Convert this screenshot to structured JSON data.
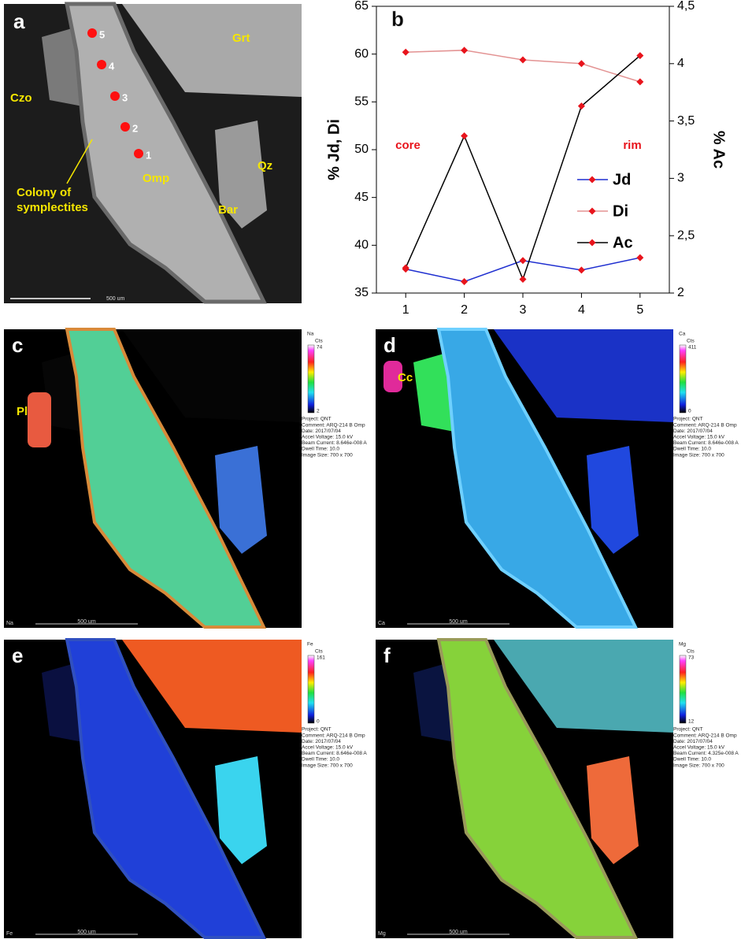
{
  "chart_data": {
    "type": "line",
    "panel_letter": "b",
    "x": [
      1,
      2,
      3,
      4,
      5
    ],
    "xlim": [
      0.5,
      5.5
    ],
    "xticks": [
      1,
      2,
      3,
      4,
      5
    ],
    "ylim": [
      35,
      65
    ],
    "yticks": [
      35,
      40,
      45,
      50,
      55,
      60,
      65
    ],
    "y2lim": [
      2,
      4.5
    ],
    "y2ticks": [
      2,
      {
        "value": 2.5,
        "label": "2,5"
      },
      3,
      {
        "value": 3.5,
        "label": "3,5"
      },
      4,
      {
        "value": 4.5,
        "label": "4,5"
      }
    ],
    "ylabel": "% Jd, Di",
    "y2label": "% Ac",
    "annotations": [
      "core",
      "rim"
    ],
    "marker_color": "#e8141c",
    "series": [
      {
        "name": "Jd",
        "color": "#1f2fd0",
        "values": [
          37.5,
          36.2,
          38.4,
          37.4,
          38.7
        ]
      },
      {
        "name": "Di",
        "color": "#e39393",
        "values": [
          60.2,
          60.4,
          59.4,
          59.0,
          57.1
        ]
      },
      {
        "name": "Ac",
        "color": "#000000",
        "axis": "y2",
        "values": [
          2.22,
          3.37,
          2.12,
          3.63,
          4.07
        ]
      }
    ]
  },
  "panel_a": {
    "letter": "a",
    "minerals": [
      "Grt",
      "Czo",
      "Qz",
      "Bar",
      "Omp"
    ],
    "symplectite_label": [
      "Colony of",
      "symplectites"
    ],
    "points": [
      "1",
      "2",
      "3",
      "4",
      "5"
    ],
    "scale": "500 um"
  },
  "maps": [
    {
      "letter": "c",
      "element": "Na",
      "unit": "Cts",
      "max": 74,
      "min": 2,
      "mineral_label": "Pl",
      "scale": "500 um",
      "info": [
        "Project: QNT",
        "Comment: ARQ-214 B Omp",
        "Date: 2017/07/04",
        "Accel Voltage: 15.0 kV",
        "Beam Current: 8.646e-008 A",
        "Dwell Time: 10.0",
        "Image Size: 700 x 700"
      ]
    },
    {
      "letter": "d",
      "element": "Ca",
      "unit": "Cts",
      "max": 411,
      "min": 0,
      "mineral_label": "Cc",
      "scale": "500 um",
      "info": [
        "Project: QNT",
        "Comment: ARQ-214 B Omp",
        "Date: 2017/07/04",
        "Accel Voltage: 15.0 kV",
        "Beam Current: 8.646e-008 A",
        "Dwell Time: 10.0",
        "Image Size: 700 x 700"
      ]
    },
    {
      "letter": "e",
      "element": "Fe",
      "unit": "Cts",
      "max": 161,
      "min": 0,
      "scale": "500 um",
      "info": [
        "Project: QNT",
        "Comment: ARQ-214 B Omp",
        "Date: 2017/07/04",
        "Accel Voltage: 15.0 kV",
        "Beam Current: 8.646e-008 A",
        "Dwell Time: 10.0",
        "Image Size: 700 x 700"
      ]
    },
    {
      "letter": "f",
      "element": "Mg",
      "unit": "Cts",
      "max": 73,
      "min": 12,
      "scale": "500 um",
      "info": [
        "Project: QNT",
        "Comment: ARQ-214 B Omp",
        "Date: 2017/07/04",
        "Accel Voltage: 15.0 kV",
        "Beam Current: 4.325e-008 A",
        "Dwell Time: 10.0",
        "Image Size: 700 x 700"
      ]
    }
  ]
}
